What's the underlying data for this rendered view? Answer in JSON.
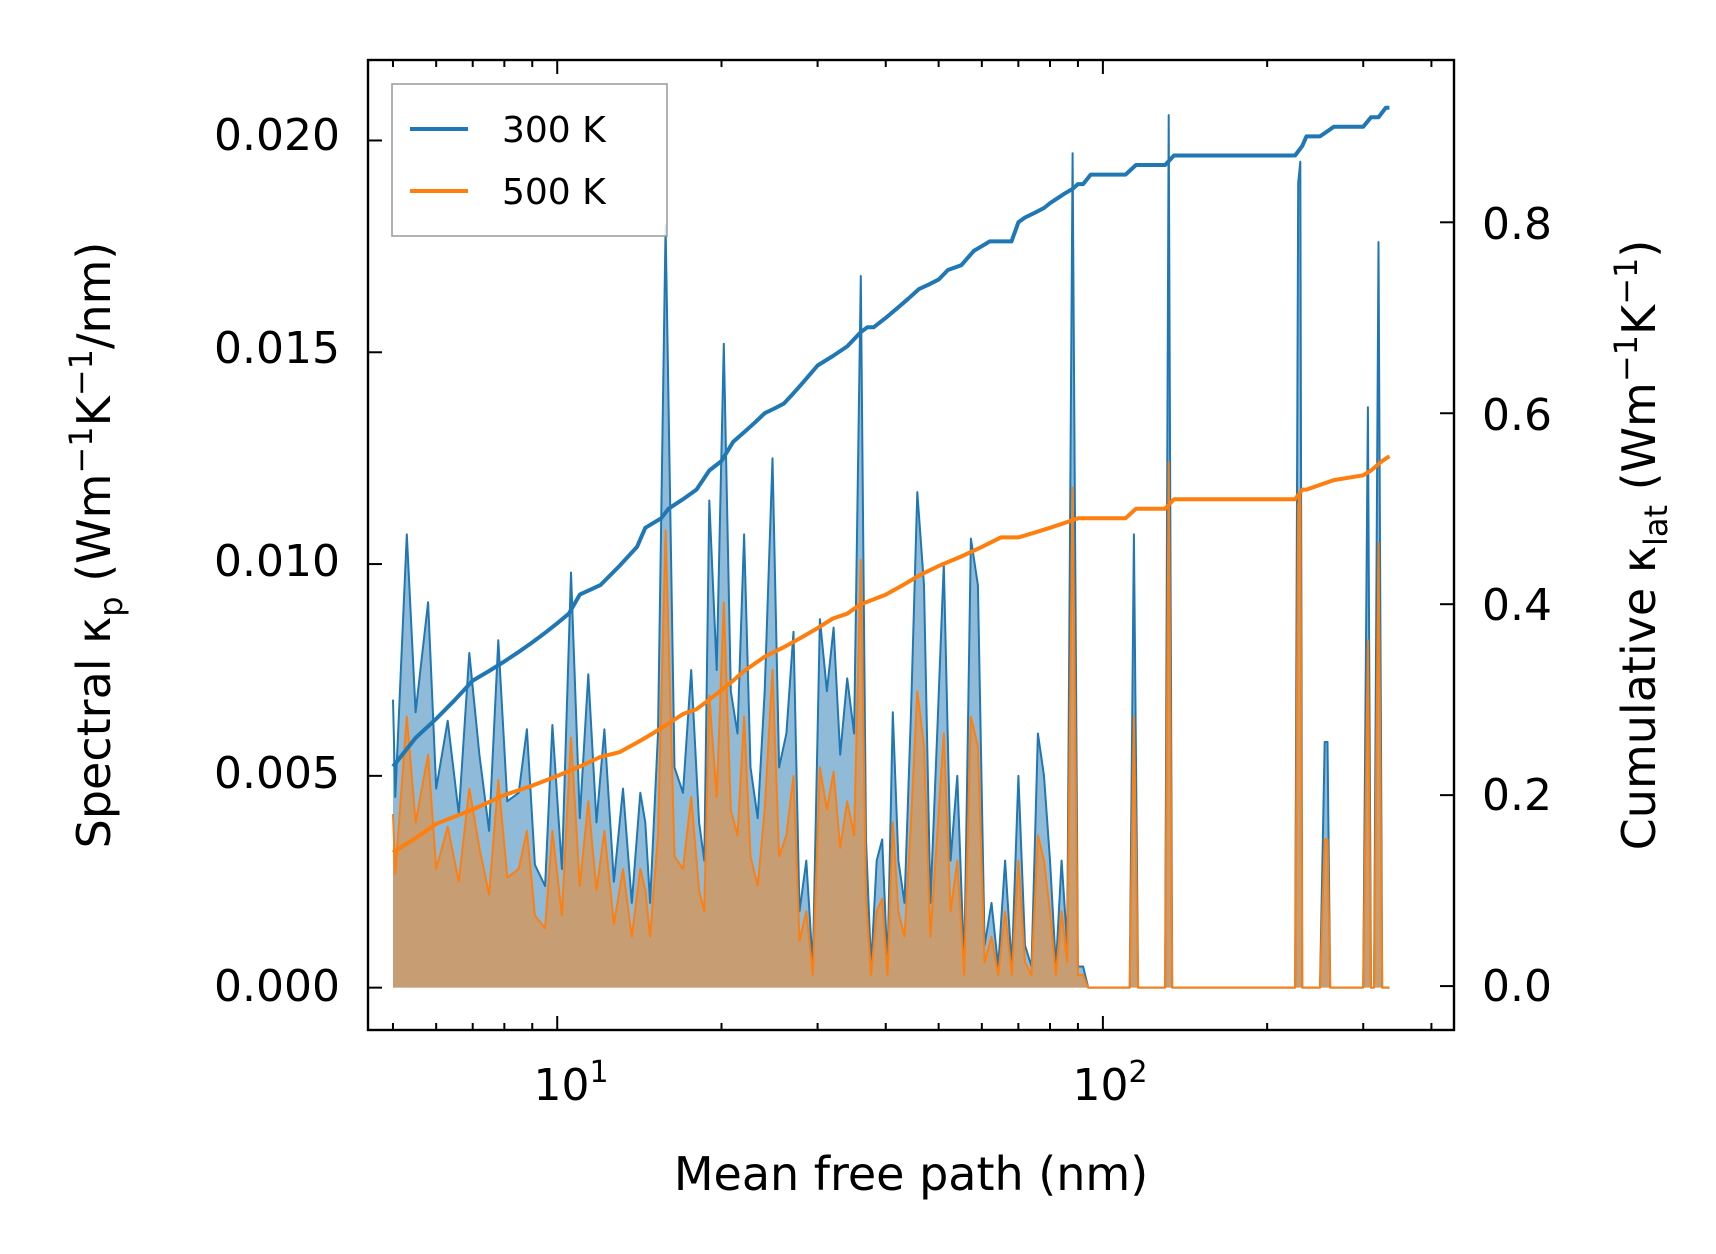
{
  "chart_data": {
    "type": "line",
    "xscale": "log",
    "xlim": [
      4.5,
      440
    ],
    "xlabel": "Mean free path (nm)",
    "xticks": [
      10,
      100
    ],
    "xtick_labels": [
      {
        "base": "10",
        "exp": "1"
      },
      {
        "base": "10",
        "exp": "2"
      }
    ],
    "left_axis": {
      "label": {
        "text1": "Spectral κ",
        "sub": "p",
        "text2": " (Wm",
        "sup1": "−1",
        "text3": "K",
        "sup2": "−1",
        "text4": "/nm)"
      },
      "ylim": [
        -0.001,
        0.0219
      ],
      "ticks": [
        0.0,
        0.005,
        0.01,
        0.015,
        0.02
      ],
      "tick_labels": [
        "0.000",
        "0.005",
        "0.010",
        "0.015",
        "0.020"
      ]
    },
    "right_axis": {
      "label": {
        "text1": "Cumulative κ",
        "sub": "lat",
        "text2": " (Wm",
        "sup1": "−1",
        "text3": "K",
        "sup2": "−1",
        "text4": ")"
      },
      "ylim": [
        -0.046,
        0.97
      ],
      "ticks": [
        0.0,
        0.2,
        0.4,
        0.6,
        0.8
      ],
      "tick_labels": [
        "0.0",
        "0.2",
        "0.4",
        "0.6",
        "0.8"
      ]
    },
    "legend": {
      "position": "top-left",
      "entries": [
        "300 K",
        "500 K"
      ]
    },
    "series": [
      {
        "name": "300 K",
        "color": "#1f77b4",
        "spectral": {
          "x": [
            5.0,
            5.05,
            5.3,
            5.5,
            5.8,
            6.0,
            6.3,
            6.6,
            6.9,
            7.2,
            7.5,
            7.8,
            8.1,
            8.5,
            8.8,
            9.1,
            9.5,
            9.8,
            10.2,
            10.6,
            11.0,
            11.4,
            11.8,
            12.2,
            12.7,
            13.2,
            13.7,
            14.2,
            14.5,
            14.8,
            15.3,
            15.8,
            16.4,
            17.0,
            17.6,
            18.2,
            18.6,
            19.0,
            19.6,
            20.2,
            20.8,
            21.4,
            22.0,
            22.6,
            23.3,
            24.0,
            24.8,
            25.5,
            26.3,
            27.1,
            27.8,
            28.6,
            29.4,
            30.3,
            31.2,
            32.1,
            33.0,
            34.0,
            35.0,
            36.0,
            36.8,
            37.6,
            38.5,
            39.4,
            40.3,
            41.2,
            42.2,
            43.3,
            44.5,
            45.7,
            47.0,
            48.3,
            49.7,
            51.1,
            52.6,
            54.1,
            55.7,
            57.3,
            59.0,
            60.7,
            62.5,
            64.3,
            66.2,
            68.1,
            70.0,
            72.0,
            74.0,
            76.0,
            78.0,
            80.0,
            82.0,
            84.0,
            86.0,
            88.0,
            90.0,
            92.0,
            94.0,
            96.0,
            110.0,
            112.0,
            114.0,
            116.0,
            118.0,
            130.0,
            132.0,
            134.0,
            136.0,
            138.0,
            225.0,
            228.0,
            230.0,
            232.0,
            234.0,
            236.0,
            250.0,
            255.0,
            258.0,
            261.0,
            265.0,
            300.0,
            306.0,
            310.0,
            314.0,
            320.0,
            325.0,
            330.0,
            335.0
          ],
          "y": [
            0.0068,
            0.0045,
            0.0107,
            0.0065,
            0.0091,
            0.0047,
            0.0063,
            0.0041,
            0.0079,
            0.0055,
            0.0037,
            0.0082,
            0.0044,
            0.0046,
            0.0061,
            0.0029,
            0.0024,
            0.0062,
            0.0028,
            0.0098,
            0.004,
            0.0074,
            0.0039,
            0.0061,
            0.0025,
            0.0047,
            0.002,
            0.0046,
            0.0039,
            0.002,
            0.006,
            0.018,
            0.0052,
            0.0046,
            0.0075,
            0.0039,
            0.003,
            0.0115,
            0.0075,
            0.0152,
            0.007,
            0.006,
            0.0107,
            0.0052,
            0.004,
            0.007,
            0.0125,
            0.0052,
            0.006,
            0.0084,
            0.0018,
            0.003,
            0.0005,
            0.0087,
            0.007,
            0.0085,
            0.0055,
            0.0073,
            0.006,
            0.0168,
            0.0035,
            0.0005,
            0.003,
            0.0035,
            0.0005,
            0.0065,
            0.003,
            0.002,
            0.0065,
            0.0117,
            0.0095,
            0.002,
            0.006,
            0.01,
            0.003,
            0.005,
            0.0005,
            0.0106,
            0.0095,
            0.001,
            0.002,
            0.0005,
            0.003,
            0.0005,
            0.005,
            0.001,
            0.0005,
            0.006,
            0.005,
            0.003,
            0.0005,
            0.003,
            0.001,
            0.0197,
            0.0005,
            0.0005,
            0.0,
            0.0,
            0.0,
            0.0,
            0.0107,
            0.0,
            0.0,
            0.0,
            0.0206,
            0.0,
            0.0,
            0.0,
            0.0,
            0.019,
            0.0195,
            0.0,
            0.0,
            0.0,
            0.0,
            0.0058,
            0.0058,
            0.0,
            0.0,
            0.0,
            0.0137,
            0.0,
            0.0,
            0.0176,
            0.0,
            0.0,
            0.0
          ]
        },
        "cumulative": {
          "x": [
            5.0,
            5.5,
            6.0,
            6.5,
            7.0,
            7.5,
            8.0,
            8.5,
            9.0,
            9.5,
            10.0,
            10.5,
            11.0,
            12.0,
            13.0,
            14.0,
            14.5,
            15.5,
            16.0,
            17.0,
            18.0,
            19.0,
            20.0,
            21.0,
            22.0,
            23.0,
            24.0,
            25.0,
            26.0,
            27.0,
            28.0,
            30.0,
            32.0,
            34.0,
            36.0,
            37.0,
            38.0,
            40.0,
            42.0,
            44.0,
            46.0,
            48.0,
            50.0,
            52.0,
            55.0,
            58.0,
            60.0,
            62.0,
            65.0,
            68.0,
            70.0,
            72.0,
            75.0,
            78.0,
            80.0,
            85.0,
            88.0,
            90.0,
            92.0,
            95.0,
            110.0,
            115.0,
            130.0,
            135.0,
            140.0,
            225.0,
            232.0,
            236.0,
            250.0,
            265.0,
            280.0,
            300.0,
            310.0,
            320.0,
            330.0,
            335.0
          ],
          "y": [
            0.23,
            0.26,
            0.28,
            0.3,
            0.32,
            0.33,
            0.34,
            0.35,
            0.36,
            0.37,
            0.38,
            0.39,
            0.41,
            0.42,
            0.44,
            0.46,
            0.48,
            0.49,
            0.5,
            0.51,
            0.52,
            0.54,
            0.55,
            0.57,
            0.58,
            0.59,
            0.6,
            0.605,
            0.61,
            0.62,
            0.63,
            0.65,
            0.66,
            0.67,
            0.685,
            0.69,
            0.69,
            0.7,
            0.71,
            0.72,
            0.73,
            0.735,
            0.74,
            0.75,
            0.755,
            0.77,
            0.775,
            0.78,
            0.78,
            0.78,
            0.8,
            0.805,
            0.81,
            0.815,
            0.82,
            0.83,
            0.835,
            0.84,
            0.84,
            0.85,
            0.85,
            0.86,
            0.86,
            0.87,
            0.87,
            0.87,
            0.88,
            0.89,
            0.89,
            0.9,
            0.9,
            0.9,
            0.91,
            0.91,
            0.92,
            0.92
          ]
        }
      },
      {
        "name": "500 K",
        "color": "#ff7f0e",
        "spectral": {
          "x": [
            5.0,
            5.05,
            5.3,
            5.5,
            5.8,
            6.0,
            6.3,
            6.6,
            6.9,
            7.2,
            7.5,
            7.8,
            8.1,
            8.5,
            8.8,
            9.1,
            9.5,
            9.8,
            10.2,
            10.6,
            11.0,
            11.4,
            11.8,
            12.2,
            12.7,
            13.2,
            13.7,
            14.2,
            14.5,
            14.8,
            15.3,
            15.8,
            16.4,
            17.0,
            17.6,
            18.2,
            18.6,
            19.0,
            19.6,
            20.2,
            20.8,
            21.4,
            22.0,
            22.6,
            23.3,
            24.0,
            24.8,
            25.5,
            26.3,
            27.1,
            27.8,
            28.6,
            29.4,
            30.3,
            31.2,
            32.1,
            33.0,
            34.0,
            35.0,
            36.0,
            36.8,
            37.6,
            38.5,
            39.4,
            40.3,
            41.2,
            42.2,
            43.3,
            44.5,
            45.7,
            47.0,
            48.3,
            49.7,
            51.1,
            52.6,
            54.1,
            55.7,
            57.3,
            59.0,
            60.7,
            62.5,
            64.3,
            66.2,
            68.1,
            70.0,
            72.0,
            74.0,
            76.0,
            78.0,
            80.0,
            82.0,
            84.0,
            86.0,
            88.0,
            90.0,
            92.0,
            94.0,
            96.0,
            110.0,
            112.0,
            114.0,
            116.0,
            118.0,
            130.0,
            132.0,
            134.0,
            136.0,
            138.0,
            225.0,
            228.0,
            230.0,
            232.0,
            234.0,
            236.0,
            250.0,
            255.0,
            258.0,
            261.0,
            265.0,
            300.0,
            306.0,
            310.0,
            314.0,
            320.0,
            325.0,
            330.0,
            335.0
          ],
          "y": [
            0.0041,
            0.0027,
            0.0064,
            0.0039,
            0.0055,
            0.0028,
            0.0038,
            0.0025,
            0.0047,
            0.0033,
            0.0022,
            0.0049,
            0.0026,
            0.0028,
            0.0037,
            0.0017,
            0.0014,
            0.0037,
            0.0017,
            0.0059,
            0.0024,
            0.0044,
            0.0023,
            0.0037,
            0.0015,
            0.0028,
            0.0012,
            0.0028,
            0.0023,
            0.0012,
            0.0036,
            0.0108,
            0.0031,
            0.0028,
            0.0045,
            0.0023,
            0.0018,
            0.0069,
            0.0045,
            0.0091,
            0.0042,
            0.0036,
            0.0064,
            0.0031,
            0.0024,
            0.0042,
            0.0075,
            0.0031,
            0.0036,
            0.005,
            0.0011,
            0.0018,
            0.0003,
            0.0052,
            0.0042,
            0.0051,
            0.0033,
            0.0044,
            0.0036,
            0.0101,
            0.0021,
            0.0003,
            0.0018,
            0.0021,
            0.0003,
            0.0039,
            0.0018,
            0.0012,
            0.0039,
            0.007,
            0.0057,
            0.0012,
            0.0036,
            0.006,
            0.0018,
            0.003,
            0.0003,
            0.0064,
            0.0057,
            0.0006,
            0.0012,
            0.0003,
            0.0018,
            0.0003,
            0.003,
            0.0006,
            0.0003,
            0.0036,
            0.003,
            0.0018,
            0.0003,
            0.0018,
            0.0006,
            0.0118,
            0.0003,
            0.0003,
            0.0,
            0.0,
            0.0,
            0.0,
            0.0064,
            0.0,
            0.0,
            0.0,
            0.0124,
            0.0,
            0.0,
            0.0,
            0.0,
            0.0114,
            0.0117,
            0.0,
            0.0,
            0.0,
            0.0,
            0.0035,
            0.0035,
            0.0,
            0.0,
            0.0,
            0.0082,
            0.0,
            0.0,
            0.0105,
            0.0,
            0.0,
            0.0
          ]
        },
        "cumulative": {
          "x": [
            5.0,
            5.5,
            6.0,
            7.0,
            8.0,
            9.0,
            10.0,
            11.0,
            12.0,
            13.0,
            14.0,
            15.0,
            16.0,
            17.0,
            18.0,
            19.0,
            20.0,
            21.0,
            22.0,
            24.0,
            26.0,
            28.0,
            30.0,
            32.0,
            34.0,
            36.0,
            38.0,
            40.0,
            43.0,
            46.0,
            50.0,
            55.0,
            60.0,
            65.0,
            70.0,
            75.0,
            80.0,
            85.0,
            90.0,
            92.0,
            110.0,
            115.0,
            130.0,
            135.0,
            225.0,
            232.0,
            236.0,
            250.0,
            265.0,
            300.0,
            310.0,
            325.0,
            335.0
          ],
          "y": [
            0.14,
            0.155,
            0.17,
            0.185,
            0.2,
            0.21,
            0.22,
            0.23,
            0.24,
            0.245,
            0.255,
            0.265,
            0.275,
            0.285,
            0.29,
            0.3,
            0.31,
            0.32,
            0.33,
            0.345,
            0.355,
            0.365,
            0.375,
            0.385,
            0.39,
            0.4,
            0.405,
            0.41,
            0.42,
            0.43,
            0.44,
            0.45,
            0.46,
            0.47,
            0.47,
            0.475,
            0.48,
            0.485,
            0.49,
            0.49,
            0.49,
            0.5,
            0.5,
            0.51,
            0.51,
            0.52,
            0.52,
            0.525,
            0.53,
            0.535,
            0.54,
            0.55,
            0.555
          ]
        }
      }
    ]
  }
}
